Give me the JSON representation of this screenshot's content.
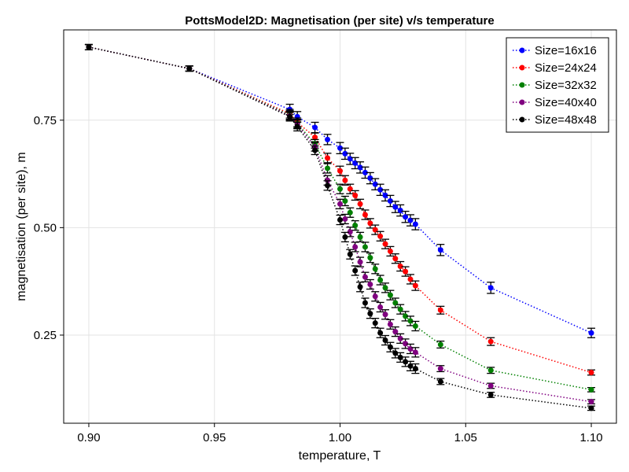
{
  "chart_data": {
    "type": "scatter",
    "title": "PottsModel2D: Magnetisation (per site) v/s temperature",
    "xlabel": "temperature, T",
    "ylabel": "magnetisation (per site), m",
    "xlim": [
      0.89,
      1.11
    ],
    "ylim": [
      0.045,
      0.96
    ],
    "xticks": [
      0.9,
      0.95,
      1.0,
      1.05,
      1.1
    ],
    "xtick_labels": [
      "0.90",
      "0.95",
      "1.00",
      "1.05",
      "1.10"
    ],
    "yticks": [
      0.25,
      0.5,
      0.75
    ],
    "ytick_labels": [
      "0.25",
      "0.50",
      "0.75"
    ],
    "grid": true,
    "legend_position": "top-right",
    "line_style": "dotted",
    "error_bars": true,
    "series": [
      {
        "name": "Size=16x16",
        "color": "#0000ff",
        "x": [
          0.9,
          0.94,
          0.98,
          0.983,
          0.99,
          0.995,
          1.0,
          1.002,
          1.004,
          1.006,
          1.008,
          1.01,
          1.012,
          1.014,
          1.016,
          1.018,
          1.02,
          1.022,
          1.024,
          1.026,
          1.028,
          1.03,
          1.04,
          1.06,
          1.1
        ],
        "y": [
          0.92,
          0.87,
          0.775,
          0.758,
          0.733,
          0.705,
          0.685,
          0.672,
          0.66,
          0.65,
          0.64,
          0.628,
          0.615,
          0.601,
          0.588,
          0.575,
          0.562,
          0.548,
          0.54,
          0.525,
          0.517,
          0.508,
          0.448,
          0.36,
          0.255
        ],
        "err": [
          0.006,
          0.006,
          0.012,
          0.012,
          0.012,
          0.012,
          0.013,
          0.013,
          0.013,
          0.013,
          0.013,
          0.013,
          0.013,
          0.013,
          0.013,
          0.013,
          0.013,
          0.013,
          0.013,
          0.013,
          0.013,
          0.013,
          0.013,
          0.013,
          0.011
        ]
      },
      {
        "name": "Size=24x24",
        "color": "#ff0000",
        "x": [
          0.9,
          0.94,
          0.98,
          0.983,
          0.99,
          0.995,
          1.0,
          1.002,
          1.004,
          1.006,
          1.008,
          1.01,
          1.012,
          1.014,
          1.016,
          1.018,
          1.02,
          1.022,
          1.024,
          1.026,
          1.028,
          1.03,
          1.04,
          1.06,
          1.1
        ],
        "y": [
          0.92,
          0.87,
          0.765,
          0.745,
          0.71,
          0.662,
          0.632,
          0.61,
          0.59,
          0.575,
          0.555,
          0.53,
          0.51,
          0.495,
          0.48,
          0.462,
          0.445,
          0.428,
          0.41,
          0.398,
          0.38,
          0.365,
          0.308,
          0.235,
          0.163
        ],
        "err": [
          0.006,
          0.006,
          0.01,
          0.01,
          0.01,
          0.011,
          0.011,
          0.011,
          0.011,
          0.011,
          0.011,
          0.011,
          0.011,
          0.011,
          0.011,
          0.011,
          0.011,
          0.011,
          0.011,
          0.011,
          0.011,
          0.011,
          0.009,
          0.009,
          0.006
        ]
      },
      {
        "name": "Size=32x32",
        "color": "#008000",
        "x": [
          0.9,
          0.94,
          0.98,
          0.983,
          0.99,
          0.995,
          1.0,
          1.002,
          1.004,
          1.006,
          1.008,
          1.01,
          1.012,
          1.014,
          1.016,
          1.018,
          1.02,
          1.022,
          1.024,
          1.026,
          1.028,
          1.03,
          1.04,
          1.06,
          1.1
        ],
        "y": [
          0.92,
          0.87,
          0.762,
          0.742,
          0.695,
          0.638,
          0.59,
          0.562,
          0.535,
          0.505,
          0.478,
          0.455,
          0.43,
          0.404,
          0.378,
          0.36,
          0.343,
          0.325,
          0.31,
          0.294,
          0.283,
          0.271,
          0.228,
          0.168,
          0.123
        ],
        "err": [
          0.006,
          0.006,
          0.01,
          0.01,
          0.01,
          0.011,
          0.011,
          0.011,
          0.011,
          0.011,
          0.011,
          0.011,
          0.011,
          0.011,
          0.011,
          0.011,
          0.011,
          0.011,
          0.011,
          0.011,
          0.011,
          0.011,
          0.008,
          0.007,
          0.005
        ]
      },
      {
        "name": "Size=40x40",
        "color": "#800080",
        "x": [
          0.9,
          0.94,
          0.98,
          0.983,
          0.99,
          0.995,
          1.0,
          1.002,
          1.004,
          1.006,
          1.008,
          1.01,
          1.012,
          1.014,
          1.016,
          1.018,
          1.02,
          1.022,
          1.024,
          1.026,
          1.028,
          1.03,
          1.04,
          1.06,
          1.1
        ],
        "y": [
          0.92,
          0.87,
          0.76,
          0.74,
          0.688,
          0.61,
          0.555,
          0.52,
          0.49,
          0.455,
          0.42,
          0.385,
          0.368,
          0.34,
          0.315,
          0.298,
          0.275,
          0.258,
          0.242,
          0.23,
          0.218,
          0.21,
          0.172,
          0.132,
          0.095
        ],
        "err": [
          0.006,
          0.006,
          0.01,
          0.01,
          0.01,
          0.011,
          0.011,
          0.011,
          0.011,
          0.011,
          0.011,
          0.011,
          0.011,
          0.011,
          0.011,
          0.011,
          0.011,
          0.011,
          0.011,
          0.011,
          0.011,
          0.011,
          0.007,
          0.006,
          0.005
        ]
      },
      {
        "name": "Size=48x48",
        "color": "#000000",
        "x": [
          0.9,
          0.94,
          0.98,
          0.983,
          0.99,
          0.995,
          1.0,
          1.002,
          1.004,
          1.006,
          1.008,
          1.01,
          1.012,
          1.014,
          1.016,
          1.018,
          1.02,
          1.022,
          1.024,
          1.026,
          1.028,
          1.03,
          1.04,
          1.06,
          1.1
        ],
        "y": [
          0.92,
          0.87,
          0.758,
          0.735,
          0.68,
          0.598,
          0.518,
          0.478,
          0.438,
          0.4,
          0.362,
          0.325,
          0.3,
          0.278,
          0.255,
          0.238,
          0.222,
          0.208,
          0.198,
          0.188,
          0.178,
          0.172,
          0.142,
          0.111,
          0.08
        ],
        "err": [
          0.006,
          0.006,
          0.01,
          0.01,
          0.01,
          0.011,
          0.011,
          0.011,
          0.011,
          0.011,
          0.011,
          0.011,
          0.011,
          0.011,
          0.011,
          0.011,
          0.011,
          0.011,
          0.011,
          0.011,
          0.011,
          0.011,
          0.007,
          0.006,
          0.005
        ]
      }
    ]
  }
}
